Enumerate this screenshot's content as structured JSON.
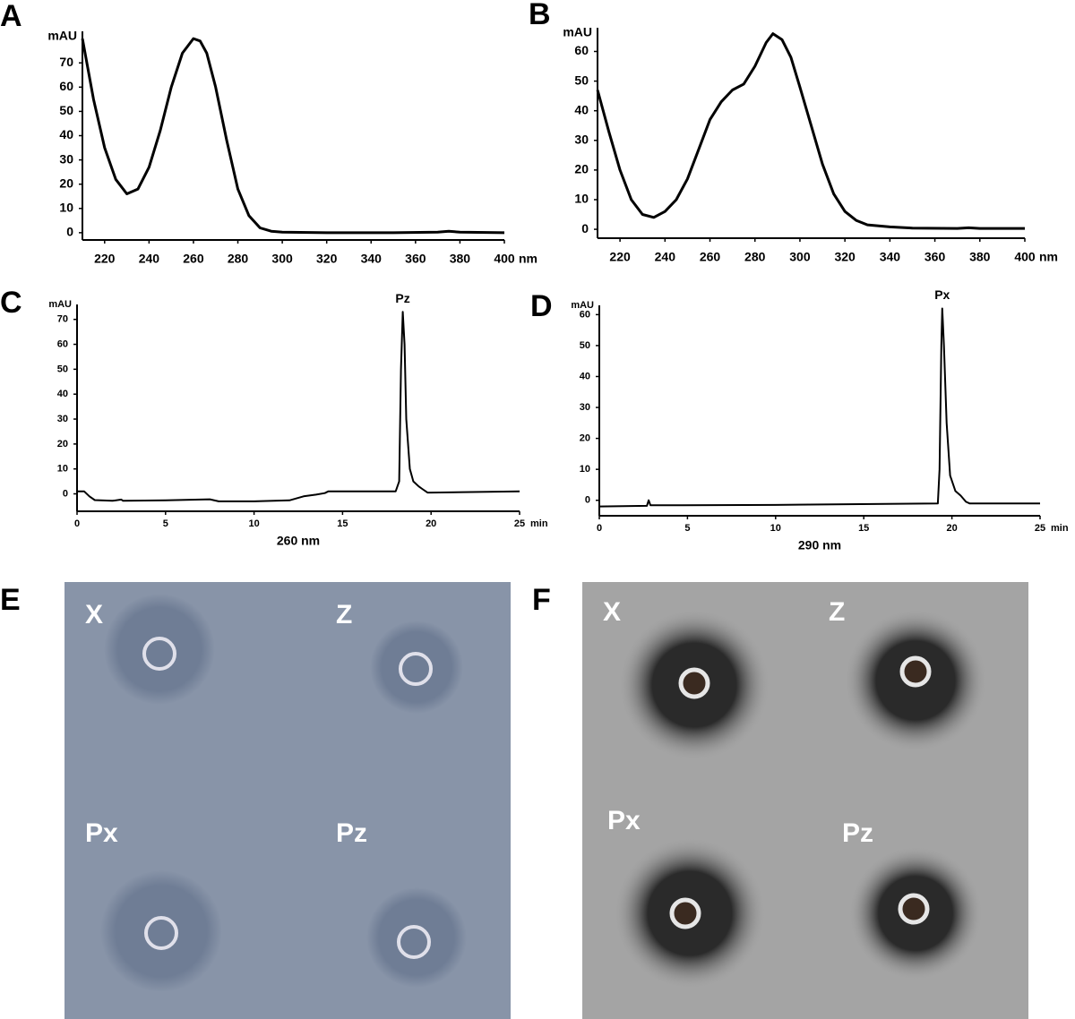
{
  "chart_data": [
    {
      "type": "line",
      "panel": "A",
      "ylabel": "mAU",
      "x_unit": "nm",
      "xlim": [
        210,
        400
      ],
      "xticks": [
        220,
        240,
        260,
        280,
        300,
        320,
        340,
        360,
        380,
        400
      ],
      "ylim": [
        -3,
        83
      ],
      "yticks": [
        0,
        10,
        20,
        30,
        40,
        50,
        60,
        70
      ],
      "series": [
        {
          "color": "#000000",
          "x": [
            210,
            215,
            220,
            225,
            230,
            235,
            240,
            245,
            250,
            255,
            260,
            263,
            266,
            270,
            275,
            280,
            285,
            290,
            295,
            300,
            320,
            350,
            370,
            375,
            380,
            400
          ],
          "values": [
            80,
            55,
            35,
            22,
            16,
            18,
            27,
            42,
            60,
            74,
            80,
            79,
            74,
            60,
            38,
            18,
            7,
            2,
            0.6,
            0.2,
            0,
            0,
            0.2,
            0.6,
            0.2,
            0
          ]
        }
      ]
    },
    {
      "type": "line",
      "panel": "B",
      "ylabel": "mAU",
      "x_unit": "nm",
      "xlim": [
        210,
        400
      ],
      "xticks": [
        220,
        240,
        260,
        280,
        300,
        320,
        340,
        360,
        380,
        400
      ],
      "ylim": [
        -3,
        68
      ],
      "yticks": [
        0,
        10,
        20,
        30,
        40,
        50,
        60
      ],
      "series": [
        {
          "color": "#000000",
          "x": [
            210,
            215,
            220,
            225,
            230,
            235,
            240,
            245,
            250,
            255,
            260,
            265,
            270,
            275,
            280,
            285,
            288,
            292,
            296,
            300,
            305,
            310,
            315,
            320,
            325,
            330,
            340,
            350,
            370,
            375,
            380,
            400
          ],
          "values": [
            47,
            33,
            20,
            10,
            5,
            4,
            6,
            10,
            17,
            27,
            37,
            43,
            47,
            49,
            55,
            63,
            66,
            64,
            58,
            48,
            35,
            22,
            12,
            6,
            3,
            1.5,
            0.8,
            0.4,
            0.3,
            0.5,
            0.3,
            0.3
          ]
        }
      ]
    },
    {
      "type": "line",
      "panel": "C",
      "ylabel": "mAU",
      "x_unit": "min",
      "xlabel": "260 nm",
      "xlim": [
        0,
        25
      ],
      "xticks": [
        0,
        5,
        10,
        15,
        20,
        25
      ],
      "ylim": [
        -7,
        76
      ],
      "yticks": [
        0,
        10,
        20,
        30,
        40,
        50,
        60,
        70
      ],
      "annotations": [
        {
          "text": "Pz",
          "x": 18.4,
          "y": 73
        }
      ],
      "series": [
        {
          "color": "#000000",
          "x": [
            0,
            0.4,
            0.7,
            1,
            2,
            2.5,
            2.6,
            5,
            7.5,
            8,
            10,
            12,
            12.8,
            13.5,
            14,
            14.2,
            16,
            18,
            18.2,
            18.3,
            18.4,
            18.5,
            18.6,
            18.8,
            19,
            19.3,
            19.5,
            19.8,
            20,
            25
          ],
          "values": [
            1,
            1,
            -1,
            -2.5,
            -2.8,
            -2.3,
            -2.8,
            -2.6,
            -2.2,
            -3,
            -3,
            -2.6,
            -1,
            -0.3,
            0.3,
            1,
            1,
            1,
            5,
            50,
            73,
            60,
            30,
            10,
            5,
            3,
            2,
            0.5,
            0.5,
            1
          ]
        }
      ]
    },
    {
      "type": "line",
      "panel": "D",
      "ylabel": "mAU",
      "x_unit": "min",
      "xlabel": "290 nm",
      "xlim": [
        0,
        25
      ],
      "xticks": [
        0,
        5,
        10,
        15,
        20,
        25
      ],
      "ylim": [
        -5,
        63
      ],
      "yticks": [
        0,
        10,
        20,
        30,
        40,
        50,
        60
      ],
      "annotations": [
        {
          "text": "Px",
          "x": 19.45,
          "y": 62
        }
      ],
      "series": [
        {
          "color": "#000000",
          "x": [
            0,
            2.7,
            2.8,
            2.9,
            10,
            19.2,
            19.3,
            19.4,
            19.45,
            19.55,
            19.7,
            19.9,
            20.2,
            20.5,
            20.8,
            21,
            25
          ],
          "values": [
            -2,
            -1.8,
            0,
            -1.6,
            -1.5,
            -1,
            10,
            50,
            62,
            50,
            25,
            8,
            3,
            1.5,
            -0.5,
            -1,
            -1
          ]
        }
      ]
    }
  ],
  "photos": [
    {
      "panel": "E",
      "labels": [
        "X",
        "Z",
        "Px",
        "Pz"
      ]
    },
    {
      "panel": "F",
      "labels": [
        "X",
        "Z",
        "Px",
        "Pz"
      ]
    }
  ]
}
